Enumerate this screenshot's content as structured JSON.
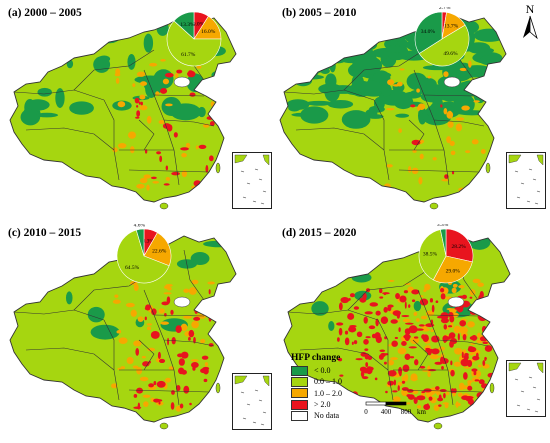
{
  "colors": {
    "lt0": "#1a9a49",
    "c0to1": "#a6d610",
    "c1to2": "#f6a800",
    "gt2": "#e8141e",
    "nodata": "#ffffff",
    "boundary": "#333333"
  },
  "panels": [
    {
      "title": "(a) 2000 – 2005",
      "pie": [
        {
          "label": "9.0%",
          "value": 9.0,
          "cls": "gt2"
        },
        {
          "label": "16.0%",
          "value": 16.0,
          "cls": "c1to2"
        },
        {
          "label": "61.7%",
          "value": 61.7,
          "cls": "c0to1"
        },
        {
          "label": "13.3%",
          "value": 13.3,
          "cls": "lt0"
        }
      ]
    },
    {
      "title": "(b) 2005 – 2010",
      "pie": [
        {
          "label": "2.7%",
          "value": 2.7,
          "cls": "gt2"
        },
        {
          "label": "13.7%",
          "value": 13.7,
          "cls": "c1to2"
        },
        {
          "label": "49.6%",
          "value": 49.6,
          "cls": "c0to1"
        },
        {
          "label": "34.0%",
          "value": 34.0,
          "cls": "lt0"
        }
      ]
    },
    {
      "title": "(c) 2010 – 2015",
      "pie": [
        {
          "label": "8.3%",
          "value": 8.3,
          "cls": "gt2"
        },
        {
          "label": "22.6%",
          "value": 22.6,
          "cls": "c1to2"
        },
        {
          "label": "64.5%",
          "value": 64.5,
          "cls": "c0to1"
        },
        {
          "label": "4.6%",
          "value": 4.6,
          "cls": "lt0"
        }
      ]
    },
    {
      "title": "(d) 2015 – 2020",
      "pie": [
        {
          "label": "28.2%",
          "value": 28.2,
          "cls": "gt2"
        },
        {
          "label": "29.0%",
          "value": 29.0,
          "cls": "c1to2"
        },
        {
          "label": "38.5%",
          "value": 38.5,
          "cls": "c0to1"
        },
        {
          "label": "3.3%",
          "value": 3.3,
          "cls": "lt0"
        }
      ]
    }
  ],
  "legend": {
    "title": "HFP change",
    "items": [
      {
        "label": "< 0.0",
        "cls": "lt0"
      },
      {
        "label": "0.0 – 1.0",
        "cls": "c0to1"
      },
      {
        "label": "1.0 – 2.0",
        "cls": "c1to2"
      },
      {
        "label": "> 2.0",
        "cls": "gt2"
      },
      {
        "label": "No data",
        "cls": "nodata"
      }
    ]
  },
  "north": "N",
  "scale": {
    "ticks": [
      "0",
      "400",
      "800"
    ],
    "unit": "km"
  }
}
